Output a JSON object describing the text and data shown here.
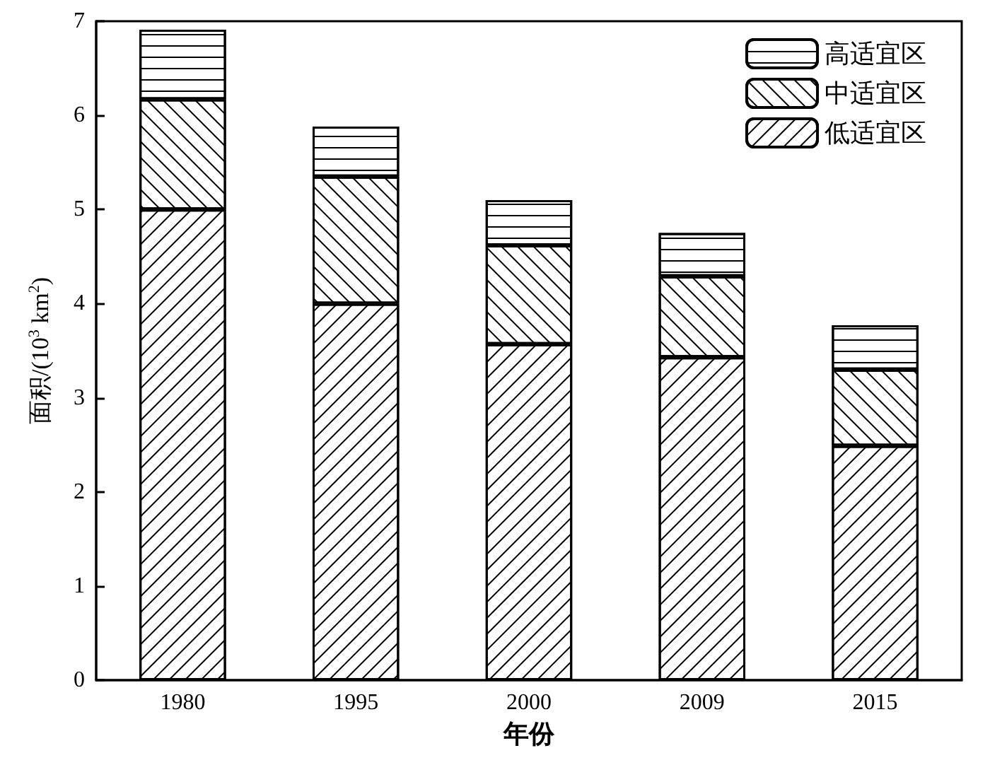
{
  "chart_data": {
    "type": "bar",
    "stacked": true,
    "xlabel": "年份",
    "ylabel": "面积/(10$^{3}$ km$^{2}$)",
    "categories": [
      "1980",
      "1995",
      "2000",
      "2009",
      "2015"
    ],
    "series": [
      {
        "name": "低适宜区",
        "color": "#ffffff",
        "values": [
          5.0,
          4.0,
          3.57,
          3.43,
          2.49
        ]
      },
      {
        "name": "中适宜区",
        "color": "#ffffff",
        "values": [
          1.17,
          1.35,
          1.05,
          0.86,
          0.81
        ]
      },
      {
        "name": "高适宜区",
        "color": "#ffffff",
        "values": [
          0.74,
          0.53,
          0.48,
          0.46,
          0.47
        ]
      }
    ],
    "ylim": [
      0,
      7
    ],
    "yticks": [
      0,
      1,
      2,
      3,
      4,
      5,
      6,
      7
    ],
    "grid": false,
    "legend": "top right"
  }
}
